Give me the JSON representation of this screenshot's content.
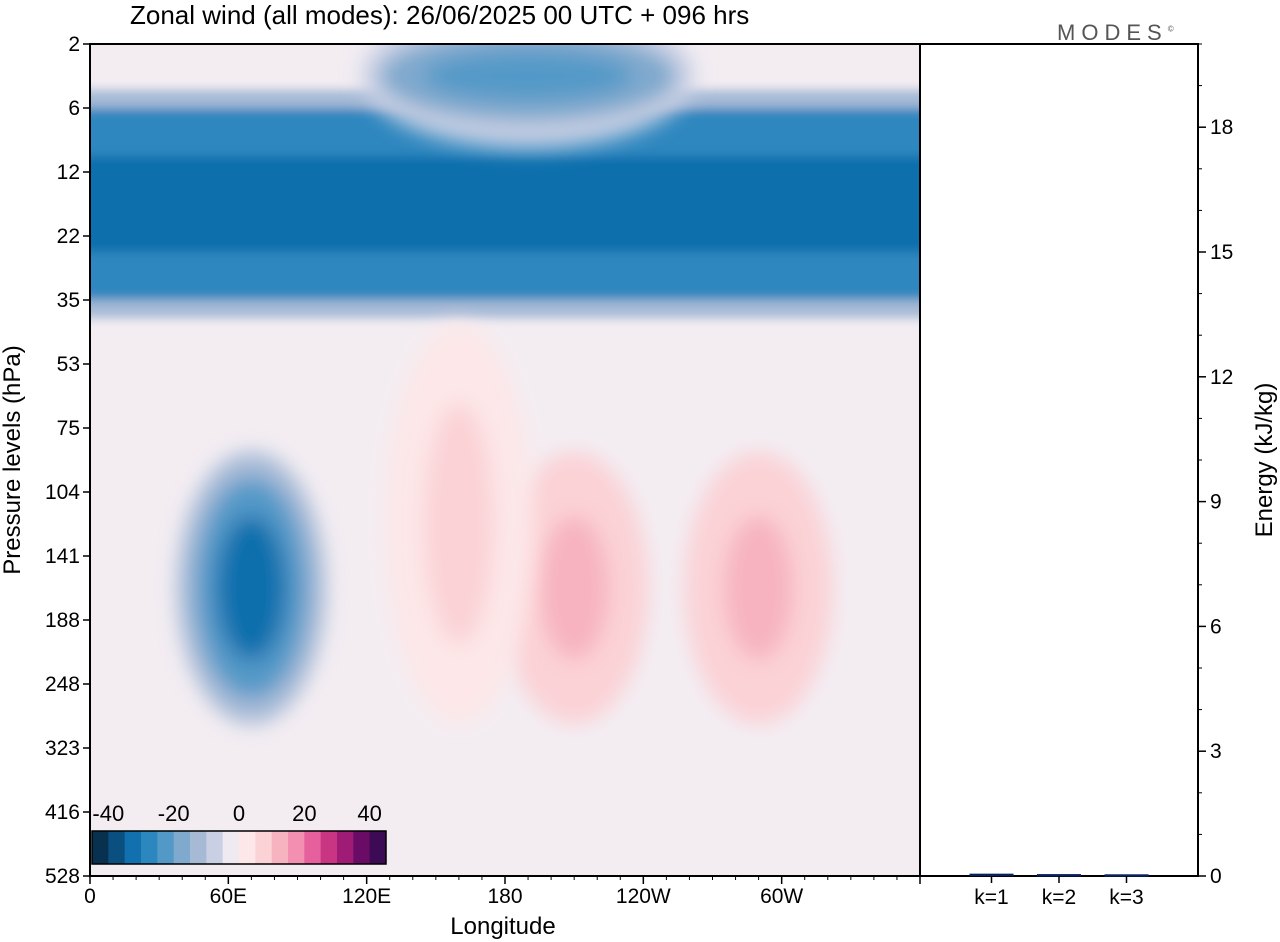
{
  "title": "Zonal wind (all modes):  26/06/2025  00 UTC  + 096 hrs",
  "brand": "MODES",
  "brand_mark": "©",
  "chart_data": [
    {
      "type": "heatmap",
      "title": "Zonal wind (all modes):  26/06/2025  00 UTC  + 096 hrs",
      "xlabel": "Longitude",
      "ylabel": "Pressure levels (hPa)",
      "x_ticks": [
        "0",
        "60E",
        "120E",
        "180",
        "120W",
        "60W"
      ],
      "y_ticks": [
        "2",
        "6",
        "12",
        "22",
        "35",
        "53",
        "75",
        "104",
        "141",
        "188",
        "248",
        "323",
        "416",
        "528"
      ],
      "colorbar": {
        "labels": [
          "-40",
          "-20",
          "0",
          "20",
          "40"
        ],
        "levels": [
          -40,
          -35,
          -30,
          -25,
          -20,
          -15,
          -10,
          -5,
          0,
          5,
          10,
          15,
          20,
          25,
          30,
          35,
          40
        ],
        "colors": [
          "#08304f",
          "#0b4f80",
          "#1170ad",
          "#2d87bf",
          "#5299c8",
          "#7fa9cd",
          "#a6bad6",
          "#c9d0e4",
          "#efeaf1",
          "#fde7e8",
          "#fbd2d6",
          "#f7b4c0",
          "#f38fb0",
          "#e6609d",
          "#c93483",
          "#9f1b75",
          "#6a0c66",
          "#3d0a55"
        ]
      },
      "features": [
        {
          "label": "stratospheric easterly jet",
          "lon_range": [
            0,
            360
          ],
          "level_range": [
            6,
            35
          ],
          "value": -30
        },
        {
          "label": "upper easterly band",
          "lon_range": [
            130,
            250
          ],
          "level_range": [
            2,
            6
          ],
          "value": -25
        },
        {
          "label": "easterly core",
          "lon_range": [
            50,
            90
          ],
          "level_range": [
            104,
            248
          ],
          "value": -33
        },
        {
          "label": "westerly core",
          "lon_range": [
            190,
            230
          ],
          "level_range": [
            104,
            248
          ],
          "value": 12
        },
        {
          "label": "westerly core",
          "lon_range": [
            270,
            310
          ],
          "level_range": [
            104,
            248
          ],
          "value": 12
        },
        {
          "label": "weak westerlies",
          "lon_range": [
            140,
            180
          ],
          "level_range": [
            53,
            248
          ],
          "value": 6
        }
      ]
    },
    {
      "type": "bar",
      "categories": [
        "k=1",
        "k=2",
        "k=3"
      ],
      "values": [
        0.02,
        0.01,
        0.005
      ],
      "ylabel": "Energy (kJ/kg)",
      "ylim": [
        0,
        20
      ],
      "y_ticks": [
        "0",
        "3",
        "6",
        "9",
        "12",
        "15",
        "18"
      ]
    }
  ]
}
